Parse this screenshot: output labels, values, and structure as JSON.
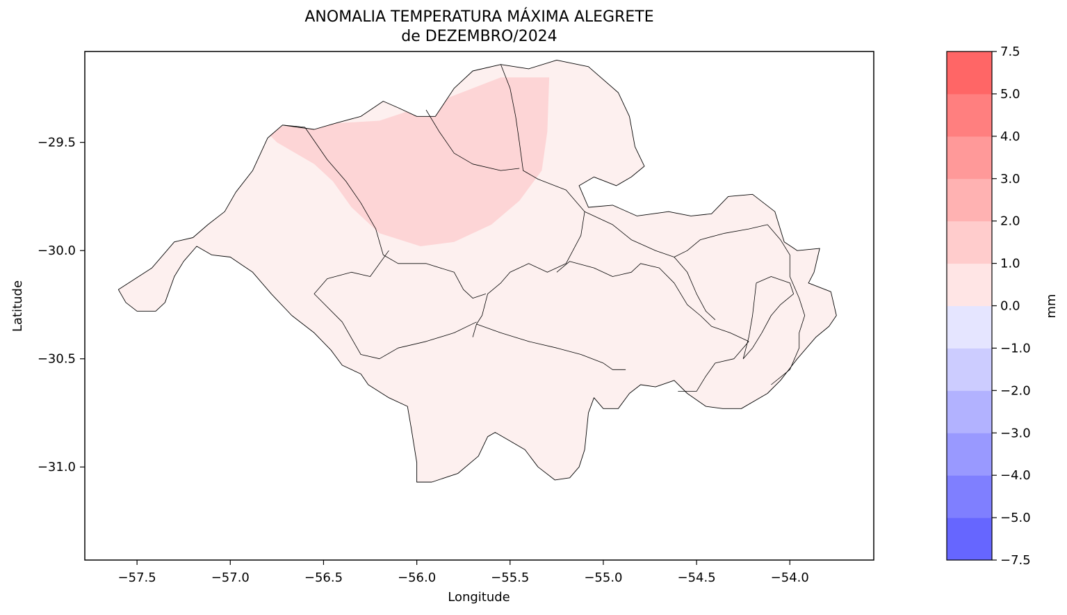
{
  "figure": {
    "title_line1": "ANOMALIA TEMPERATURA MÁXIMA ALEGRETE",
    "title_line2": "de DEZEMBRO/2024",
    "xlabel": "Longitude",
    "ylabel": "Latitude"
  },
  "axes": {
    "x_range": [
      -57.78,
      -53.55
    ],
    "y_range": [
      -31.43,
      -29.08
    ],
    "x_ticks": [
      {
        "value": -57.5,
        "label": "−57.5"
      },
      {
        "value": -57.0,
        "label": "−57.0"
      },
      {
        "value": -56.5,
        "label": "−56.5"
      },
      {
        "value": -56.0,
        "label": "−56.0"
      },
      {
        "value": -55.5,
        "label": "−55.5"
      },
      {
        "value": -55.0,
        "label": "−55.0"
      },
      {
        "value": -54.5,
        "label": "−54.5"
      },
      {
        "value": -54.0,
        "label": "−54.0"
      }
    ],
    "y_ticks": [
      {
        "value": -29.5,
        "label": "−29.5"
      },
      {
        "value": -30.0,
        "label": "−30.0"
      },
      {
        "value": -30.5,
        "label": "−30.5"
      },
      {
        "value": -31.0,
        "label": "−31.0"
      }
    ]
  },
  "colorbar": {
    "unit_label": "mm",
    "levels": [
      {
        "value": -7.5,
        "label": "−7.5"
      },
      {
        "value": -5.0,
        "label": "−5.0"
      },
      {
        "value": -4.0,
        "label": "−4.0"
      },
      {
        "value": -3.0,
        "label": "−3.0"
      },
      {
        "value": -2.0,
        "label": "−2.0"
      },
      {
        "value": -1.0,
        "label": "−1.0"
      },
      {
        "value": 0.0,
        "label": "0.0"
      },
      {
        "value": 1.0,
        "label": "1.0"
      },
      {
        "value": 2.0,
        "label": "2.0"
      },
      {
        "value": 3.0,
        "label": "3.0"
      },
      {
        "value": 4.0,
        "label": "4.0"
      },
      {
        "value": 5.0,
        "label": "5.0"
      },
      {
        "value": 7.5,
        "label": "7.5"
      }
    ],
    "colors": [
      "#6666ff",
      "#7f7fff",
      "#9999ff",
      "#b2b2ff",
      "#ccccff",
      "#e5e5ff",
      "#ffe5e5",
      "#ffcccc",
      "#ffb2b2",
      "#ff9999",
      "#ff7f7f",
      "#ff6666"
    ]
  },
  "map": {
    "background_anomaly": 0.5,
    "hotspot_anomaly": 1.5,
    "fill_colors": {
      "low": "#fdf0ef",
      "high": "#fdd5d6"
    },
    "outline_color": "#000000",
    "hotspot": [
      [
        -56.83,
        -29.43
      ],
      [
        -56.6,
        -29.42
      ],
      [
        -56.2,
        -29.4
      ],
      [
        -55.85,
        -29.3
      ],
      [
        -55.55,
        -29.2
      ],
      [
        -55.35,
        -29.2
      ],
      [
        -55.29,
        -29.2
      ],
      [
        -55.3,
        -29.45
      ],
      [
        -55.33,
        -29.63
      ],
      [
        -55.45,
        -29.77
      ],
      [
        -55.6,
        -29.88
      ],
      [
        -55.8,
        -29.96
      ],
      [
        -55.98,
        -29.98
      ],
      [
        -56.2,
        -29.92
      ],
      [
        -56.35,
        -29.8
      ],
      [
        -56.45,
        -29.68
      ],
      [
        -56.55,
        -29.6
      ],
      [
        -56.75,
        -29.5
      ]
    ],
    "outer_boundary": [
      [
        -57.6,
        -30.18
      ],
      [
        -57.42,
        -30.08
      ],
      [
        -57.3,
        -29.96
      ],
      [
        -57.2,
        -29.94
      ],
      [
        -57.12,
        -29.88
      ],
      [
        -57.03,
        -29.82
      ],
      [
        -56.97,
        -29.73
      ],
      [
        -56.88,
        -29.63
      ],
      [
        -56.8,
        -29.48
      ],
      [
        -56.72,
        -29.42
      ],
      [
        -56.55,
        -29.44
      ],
      [
        -56.43,
        -29.41
      ],
      [
        -56.3,
        -29.38
      ],
      [
        -56.18,
        -29.31
      ],
      [
        -56.1,
        -29.34
      ],
      [
        -56.0,
        -29.38
      ],
      [
        -55.9,
        -29.38
      ],
      [
        -55.8,
        -29.25
      ],
      [
        -55.7,
        -29.17
      ],
      [
        -55.55,
        -29.14
      ],
      [
        -55.4,
        -29.16
      ],
      [
        -55.25,
        -29.12
      ],
      [
        -55.08,
        -29.15
      ],
      [
        -54.92,
        -29.27
      ],
      [
        -54.86,
        -29.38
      ],
      [
        -54.83,
        -29.52
      ],
      [
        -54.78,
        -29.61
      ],
      [
        -54.85,
        -29.66
      ],
      [
        -54.93,
        -29.7
      ],
      [
        -55.05,
        -29.66
      ],
      [
        -55.13,
        -29.7
      ],
      [
        -55.08,
        -29.8
      ],
      [
        -54.95,
        -29.79
      ],
      [
        -54.82,
        -29.84
      ],
      [
        -54.65,
        -29.82
      ],
      [
        -54.53,
        -29.84
      ],
      [
        -54.42,
        -29.83
      ],
      [
        -54.33,
        -29.75
      ],
      [
        -54.2,
        -29.74
      ],
      [
        -54.08,
        -29.82
      ],
      [
        -54.03,
        -29.96
      ],
      [
        -53.96,
        -30.0
      ],
      [
        -53.84,
        -29.99
      ],
      [
        -53.87,
        -30.1
      ],
      [
        -53.9,
        -30.15
      ],
      [
        -53.78,
        -30.19
      ],
      [
        -53.75,
        -30.3
      ],
      [
        -53.79,
        -30.35
      ],
      [
        -53.86,
        -30.4
      ],
      [
        -53.96,
        -30.5
      ],
      [
        -54.05,
        -30.6
      ],
      [
        -54.12,
        -30.66
      ],
      [
        -54.26,
        -30.73
      ],
      [
        -54.36,
        -30.73
      ],
      [
        -54.45,
        -30.72
      ],
      [
        -54.55,
        -30.66
      ],
      [
        -54.62,
        -30.6
      ],
      [
        -54.72,
        -30.63
      ],
      [
        -54.8,
        -30.62
      ],
      [
        -54.86,
        -30.66
      ],
      [
        -54.92,
        -30.73
      ],
      [
        -55.0,
        -30.73
      ],
      [
        -55.05,
        -30.68
      ],
      [
        -55.08,
        -30.75
      ],
      [
        -55.1,
        -30.92
      ],
      [
        -55.13,
        -31.0
      ],
      [
        -55.18,
        -31.05
      ],
      [
        -55.26,
        -31.06
      ],
      [
        -55.35,
        -31.0
      ],
      [
        -55.42,
        -30.92
      ],
      [
        -55.5,
        -30.88
      ],
      [
        -55.58,
        -30.84
      ],
      [
        -55.62,
        -30.86
      ],
      [
        -55.67,
        -30.95
      ],
      [
        -55.78,
        -31.03
      ],
      [
        -55.92,
        -31.07
      ],
      [
        -56.0,
        -31.07
      ],
      [
        -56.0,
        -30.98
      ],
      [
        -56.03,
        -30.82
      ],
      [
        -56.05,
        -30.72
      ],
      [
        -56.15,
        -30.68
      ],
      [
        -56.26,
        -30.62
      ],
      [
        -56.3,
        -30.57
      ],
      [
        -56.4,
        -30.53
      ],
      [
        -56.46,
        -30.46
      ],
      [
        -56.55,
        -30.38
      ],
      [
        -56.67,
        -30.3
      ],
      [
        -56.78,
        -30.2
      ],
      [
        -56.88,
        -30.1
      ],
      [
        -57.0,
        -30.03
      ],
      [
        -57.1,
        -30.02
      ],
      [
        -57.18,
        -29.98
      ],
      [
        -57.25,
        -30.05
      ],
      [
        -57.3,
        -30.12
      ],
      [
        -57.35,
        -30.24
      ],
      [
        -57.4,
        -30.28
      ],
      [
        -57.5,
        -30.28
      ],
      [
        -57.56,
        -30.24
      ],
      [
        -57.6,
        -30.18
      ]
    ],
    "internal_borders": [
      [
        [
          -56.72,
          -29.42
        ],
        [
          -56.6,
          -29.43
        ],
        [
          -56.48,
          -29.58
        ],
        [
          -56.38,
          -29.68
        ],
        [
          -56.3,
          -29.78
        ],
        [
          -56.22,
          -29.9
        ],
        [
          -56.18,
          -30.02
        ],
        [
          -56.1,
          -30.06
        ],
        [
          -55.95,
          -30.06
        ],
        [
          -55.8,
          -30.1
        ],
        [
          -55.75,
          -30.18
        ],
        [
          -55.7,
          -30.22
        ],
        [
          -55.63,
          -30.2
        ]
      ],
      [
        [
          -56.15,
          -30.0
        ],
        [
          -56.25,
          -30.12
        ],
        [
          -56.35,
          -30.1
        ],
        [
          -56.48,
          -30.13
        ],
        [
          -56.55,
          -30.2
        ],
        [
          -56.4,
          -30.33
        ],
        [
          -56.3,
          -30.48
        ],
        [
          -56.2,
          -30.5
        ],
        [
          -56.1,
          -30.45
        ],
        [
          -55.95,
          -30.42
        ],
        [
          -55.8,
          -30.38
        ],
        [
          -55.68,
          -30.33
        ]
      ],
      [
        [
          -55.95,
          -29.35
        ],
        [
          -55.88,
          -29.45
        ],
        [
          -55.8,
          -29.55
        ],
        [
          -55.7,
          -29.6
        ],
        [
          -55.55,
          -29.63
        ],
        [
          -55.45,
          -29.62
        ]
      ],
      [
        [
          -55.55,
          -29.14
        ],
        [
          -55.5,
          -29.25
        ],
        [
          -55.47,
          -29.38
        ],
        [
          -55.45,
          -29.5
        ],
        [
          -55.43,
          -29.63
        ],
        [
          -55.35,
          -29.67
        ],
        [
          -55.2,
          -29.72
        ],
        [
          -55.1,
          -29.82
        ],
        [
          -55.12,
          -29.93
        ],
        [
          -55.2,
          -30.06
        ],
        [
          -55.3,
          -30.1
        ],
        [
          -55.4,
          -30.06
        ],
        [
          -55.5,
          -30.1
        ],
        [
          -55.55,
          -30.15
        ],
        [
          -55.62,
          -30.2
        ],
        [
          -55.65,
          -30.3
        ],
        [
          -55.68,
          -30.34
        ],
        [
          -55.7,
          -30.4
        ]
      ],
      [
        [
          -55.68,
          -30.34
        ],
        [
          -55.55,
          -30.38
        ],
        [
          -55.4,
          -30.42
        ],
        [
          -55.25,
          -30.45
        ],
        [
          -55.12,
          -30.48
        ],
        [
          -55.0,
          -30.52
        ],
        [
          -54.95,
          -30.55
        ],
        [
          -54.88,
          -30.55
        ]
      ],
      [
        [
          -55.25,
          -30.1
        ],
        [
          -55.18,
          -30.05
        ],
        [
          -55.05,
          -30.08
        ],
        [
          -54.95,
          -30.12
        ],
        [
          -54.85,
          -30.1
        ],
        [
          -54.8,
          -30.06
        ],
        [
          -54.7,
          -30.08
        ],
        [
          -54.62,
          -30.15
        ],
        [
          -54.55,
          -30.25
        ],
        [
          -54.48,
          -30.3
        ],
        [
          -54.42,
          -30.35
        ],
        [
          -54.32,
          -30.38
        ],
        [
          -54.22,
          -30.42
        ]
      ],
      [
        [
          -54.22,
          -30.42
        ],
        [
          -54.3,
          -30.5
        ],
        [
          -54.4,
          -30.52
        ],
        [
          -54.45,
          -30.58
        ],
        [
          -54.5,
          -30.65
        ],
        [
          -54.6,
          -30.65
        ]
      ],
      [
        [
          -55.1,
          -29.82
        ],
        [
          -54.95,
          -29.88
        ],
        [
          -54.85,
          -29.95
        ],
        [
          -54.72,
          -30.0
        ],
        [
          -54.62,
          -30.03
        ],
        [
          -54.55,
          -30.0
        ],
        [
          -54.48,
          -29.95
        ],
        [
          -54.35,
          -29.92
        ],
        [
          -54.22,
          -29.9
        ],
        [
          -54.12,
          -29.88
        ]
      ],
      [
        [
          -54.62,
          -30.03
        ],
        [
          -54.55,
          -30.1
        ],
        [
          -54.5,
          -30.2
        ],
        [
          -54.45,
          -30.28
        ],
        [
          -54.4,
          -30.32
        ]
      ],
      [
        [
          -54.12,
          -29.88
        ],
        [
          -54.05,
          -29.95
        ],
        [
          -54.0,
          -30.02
        ],
        [
          -54.0,
          -30.12
        ],
        [
          -53.95,
          -30.22
        ],
        [
          -53.92,
          -30.3
        ],
        [
          -53.95,
          -30.38
        ],
        [
          -53.95,
          -30.45
        ],
        [
          -54.0,
          -30.55
        ],
        [
          -54.1,
          -30.62
        ]
      ],
      [
        [
          -54.18,
          -30.15
        ],
        [
          -54.1,
          -30.12
        ],
        [
          -54.0,
          -30.15
        ],
        [
          -53.98,
          -30.2
        ],
        [
          -54.05,
          -30.25
        ],
        [
          -54.1,
          -30.3
        ],
        [
          -54.15,
          -30.38
        ],
        [
          -54.2,
          -30.45
        ],
        [
          -54.25,
          -30.5
        ],
        [
          -54.22,
          -30.4
        ],
        [
          -54.2,
          -30.3
        ],
        [
          -54.18,
          -30.15
        ]
      ]
    ]
  }
}
